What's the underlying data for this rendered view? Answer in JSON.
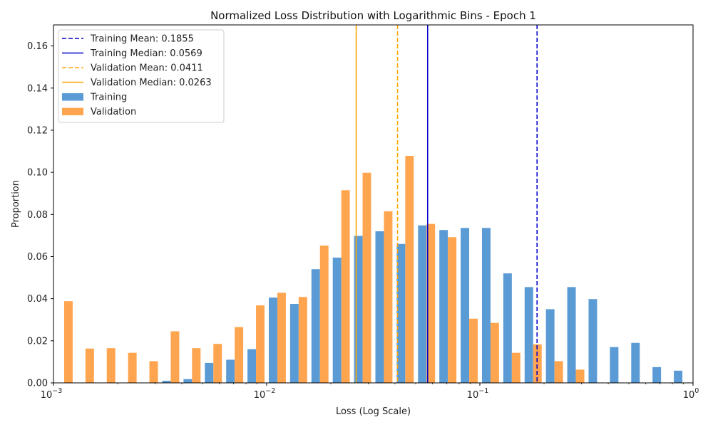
{
  "chart_data": {
    "type": "bar",
    "title": "Normalized Loss Distribution with Logarithmic Bins - Epoch 1",
    "xlabel": "Loss (Log Scale)",
    "ylabel": "Proportion",
    "x_scale": "log",
    "xlim": [
      0.001,
      1
    ],
    "ylim": [
      0,
      0.17
    ],
    "y_ticks": [
      "0.00",
      "0.02",
      "0.04",
      "0.06",
      "0.08",
      "0.10",
      "0.12",
      "0.14",
      "0.16"
    ],
    "x_ticks": [
      {
        "base": "10",
        "exp": "−3"
      },
      {
        "base": "10",
        "exp": "−2"
      },
      {
        "base": "10",
        "exp": "−1"
      },
      {
        "base": "10",
        "exp": "0"
      }
    ],
    "grid": false,
    "legend_position": "top-left",
    "bin_count": 30,
    "series": [
      {
        "name": "Training",
        "color": "#5b9bd5",
        "values": [
          0,
          0,
          0,
          0,
          0,
          0.001,
          0.0018,
          0.0095,
          0.011,
          0.016,
          0.0405,
          0.0375,
          0.054,
          0.0595,
          0.0698,
          0.072,
          0.066,
          0.0748,
          0.0726,
          0.0736,
          0.0736,
          0.052,
          0.0455,
          0.035,
          0.0455,
          0.0398,
          0.017,
          0.019,
          0.0075,
          0.0058
        ]
      },
      {
        "name": "Validation",
        "color": "#ffa54f",
        "values": [
          0.0388,
          0.0163,
          0.0165,
          0.0143,
          0.0103,
          0.0245,
          0.0165,
          0.0185,
          0.0265,
          0.0368,
          0.0428,
          0.0408,
          0.0652,
          0.0915,
          0.0998,
          0.0815,
          0.1078,
          0.0755,
          0.0692,
          0.0305,
          0.0285,
          0.0143,
          0.0183,
          0.0103,
          0.0063,
          0,
          0,
          0,
          0,
          0
        ]
      }
    ],
    "vlines": [
      {
        "label": "Training Mean: 0.1855",
        "x": 0.1855,
        "color": "#0000cc",
        "style": "dashed"
      },
      {
        "label": "Training Median: 0.0569",
        "x": 0.0569,
        "color": "#0000cc",
        "style": "solid"
      },
      {
        "label": "Validation Mean: 0.0411",
        "x": 0.0411,
        "color": "#ffa500",
        "style": "dashed"
      },
      {
        "label": "Validation Median: 0.0263",
        "x": 0.0263,
        "color": "#ffa500",
        "style": "solid"
      }
    ]
  }
}
